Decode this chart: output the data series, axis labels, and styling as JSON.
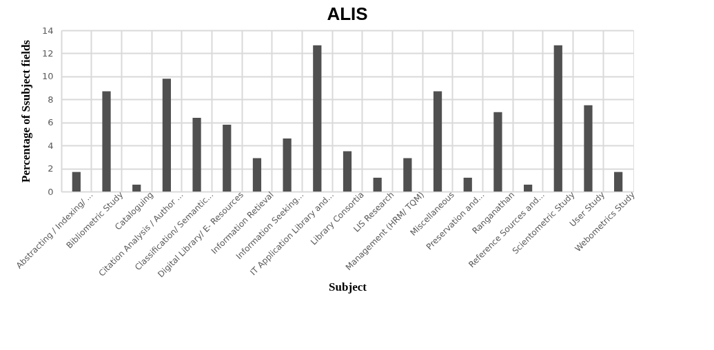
{
  "chart_data": {
    "type": "bar",
    "title": "ALIS",
    "xlabel": "Subject",
    "ylabel": "Percentage of Ssubject fields",
    "categories": [
      "Abstracting / Indexing/ ...",
      "Bibliometric Study",
      "Cataloguing",
      "Citation Analysis / Author ...",
      "Classification/ Semantic...",
      "Digital Library/ E- Resources",
      "Information Retieval",
      "Information Seeking...",
      "IT Application Library and...",
      "Library Consortia",
      "LIS Research",
      "Management (HRM/ TQM)",
      "Miscellaneous",
      "Preservation and...",
      "Ranganathan",
      "Reference Sources and...",
      "Scientometric Study",
      "User Study",
      "Webometrics Study"
    ],
    "values": [
      1.7,
      8.7,
      0.6,
      9.8,
      6.4,
      5.8,
      2.9,
      4.6,
      12.7,
      3.5,
      1.2,
      2.9,
      8.7,
      1.2,
      6.9,
      0.6,
      12.7,
      7.5,
      1.7
    ],
    "color": "#505050",
    "ylim": [
      0,
      14
    ],
    "yticks": [
      0,
      2,
      4,
      6,
      8,
      10,
      12,
      14
    ],
    "grid": true
  }
}
